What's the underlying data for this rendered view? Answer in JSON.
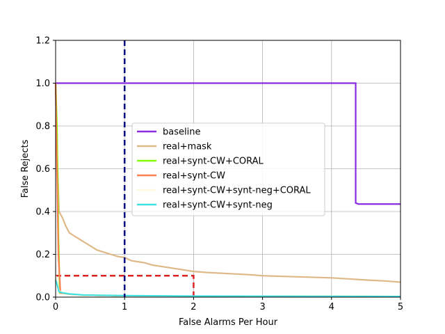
{
  "chart_data": {
    "type": "line",
    "xlabel": "False Alarms Per Hour",
    "ylabel": "False Rejects",
    "xlim": [
      0,
      5
    ],
    "ylim": [
      0,
      1.2
    ],
    "xticks": [
      0,
      1,
      2,
      3,
      4,
      5
    ],
    "yticks": [
      0.0,
      0.2,
      0.4,
      0.6,
      0.8,
      1.0,
      1.2
    ],
    "xtick_labels": [
      "0",
      "1",
      "2",
      "3",
      "4",
      "5"
    ],
    "ytick_labels": [
      "0.0",
      "0.2",
      "0.4",
      "0.6",
      "0.8",
      "1.0",
      "1.2"
    ],
    "grid": true,
    "legend_position": "center",
    "series": [
      {
        "name": "baseline",
        "color": "#8a2be2",
        "x": [
          0,
          4.35,
          4.35,
          4.39,
          5
        ],
        "y": [
          1.0,
          1.0,
          0.44,
          0.435,
          0.435
        ]
      },
      {
        "name": "real+mask",
        "color": "#deb887",
        "x": [
          0,
          0.02,
          0.05,
          0.1,
          0.15,
          0.2,
          0.25,
          0.3,
          0.4,
          0.5,
          0.6,
          0.7,
          0.8,
          0.9,
          1.0,
          1.1,
          1.2,
          1.3,
          1.4,
          1.5,
          1.6,
          1.8,
          2.0,
          2.2,
          2.5,
          2.8,
          3.0,
          3.5,
          4.0,
          4.5,
          4.8,
          5.0
        ],
        "y": [
          1.0,
          0.7,
          0.4,
          0.37,
          0.33,
          0.3,
          0.29,
          0.28,
          0.26,
          0.24,
          0.22,
          0.21,
          0.2,
          0.19,
          0.185,
          0.17,
          0.165,
          0.16,
          0.15,
          0.145,
          0.14,
          0.13,
          0.12,
          0.115,
          0.11,
          0.105,
          0.1,
          0.095,
          0.09,
          0.08,
          0.075,
          0.07
        ]
      },
      {
        "name": "real+synt-CW+CORAL",
        "color": "#7fff00",
        "x": [
          0,
          0.02,
          0.04,
          0.06,
          0.3,
          1.0,
          5.0
        ],
        "y": [
          1.0,
          0.8,
          0.3,
          0.02,
          0.01,
          0.005,
          0.003
        ]
      },
      {
        "name": "real+synt-CW",
        "color": "#ff7f50",
        "x": [
          0,
          0.02,
          0.04,
          0.07,
          0.3,
          1.0,
          5.0
        ],
        "y": [
          1.0,
          0.6,
          0.2,
          0.02,
          0.01,
          0.005,
          0.003
        ]
      },
      {
        "name": "real+synt-CW+synt-neg+CORAL",
        "color": "#fff8dc",
        "x": [
          0,
          0.02,
          0.05,
          0.1,
          0.3,
          1.0,
          5.0
        ],
        "y": [
          0.1,
          0.07,
          0.03,
          0.02,
          0.01,
          0.005,
          0.003
        ]
      },
      {
        "name": "real+synt-CW+synt-neg",
        "color": "#40e0e0",
        "x": [
          0,
          0.02,
          0.05,
          0.1,
          0.2,
          0.4,
          1.0,
          2.0,
          5.0
        ],
        "y": [
          0.08,
          0.06,
          0.025,
          0.02,
          0.015,
          0.01,
          0.007,
          0.005,
          0.003
        ]
      }
    ],
    "reference_lines": [
      {
        "orientation": "vertical",
        "x": 1.0,
        "color": "#000080",
        "style": "dashed"
      }
    ],
    "threshold_box": {
      "x": [
        0,
        2
      ],
      "y": [
        0,
        0.1
      ],
      "color": "#dd2222",
      "style": "dashed"
    }
  }
}
